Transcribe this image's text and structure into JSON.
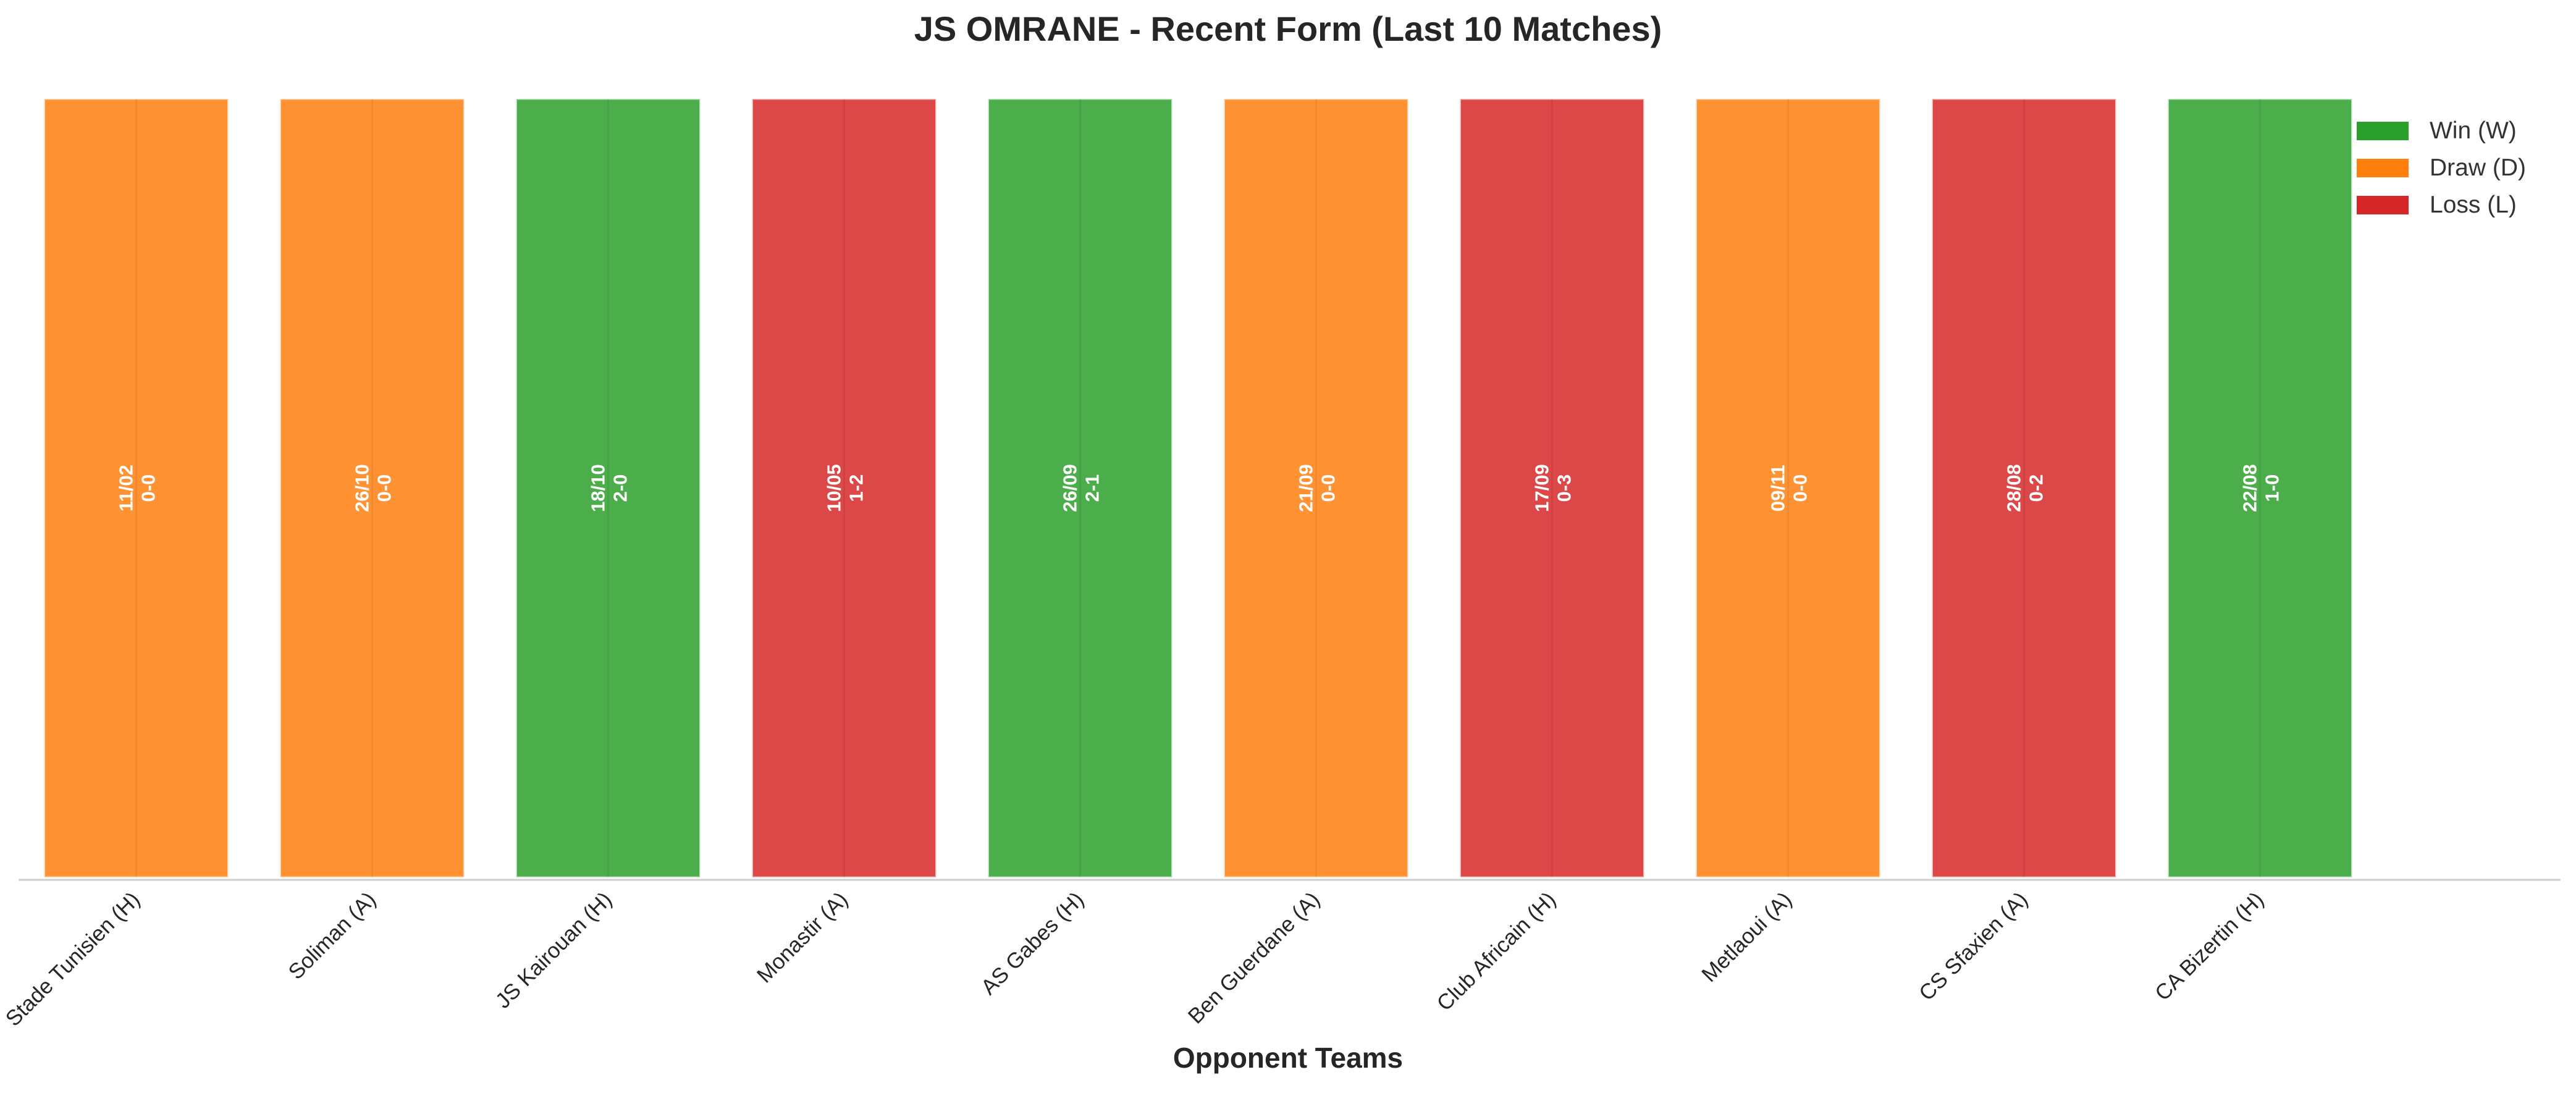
{
  "chart_data": {
    "type": "bar",
    "title": "JS OMRANE - Recent Form (Last 10 Matches)",
    "xlabel": "Opponent Teams",
    "ylabel": "",
    "categories": [
      "Stade Tunisien (H)",
      "Soliman (A)",
      "JS Kairouan (H)",
      "Monastir (A)",
      "AS Gabes (H)",
      "Ben Guerdane (A)",
      "Club Africain (H)",
      "Metlaoui (A)",
      "CS Sfaxien (A)",
      "CA Bizertin (H)"
    ],
    "values": [
      1,
      1,
      1,
      1,
      1,
      1,
      1,
      1,
      1,
      1
    ],
    "results": [
      "D",
      "D",
      "W",
      "L",
      "W",
      "D",
      "L",
      "D",
      "L",
      "W"
    ],
    "dates": [
      "11/02",
      "26/10",
      "18/10",
      "10/05",
      "26/09",
      "21/09",
      "17/09",
      "09/11",
      "28/08",
      "22/08"
    ],
    "scores": [
      "0-0",
      "0-0",
      "2-0",
      "1-2",
      "2-1",
      "0-0",
      "0-3",
      "0-0",
      "0-2",
      "1-0"
    ],
    "ylim": [
      0,
      1
    ],
    "grid": false,
    "legend_position": "top-right",
    "legend": [
      {
        "key": "W",
        "label": "Win (W)",
        "color": "#2ca02c"
      },
      {
        "key": "D",
        "label": "Draw (D)",
        "color": "#ff7f0e"
      },
      {
        "key": "L",
        "label": "Loss (L)",
        "color": "#d62728"
      }
    ]
  }
}
